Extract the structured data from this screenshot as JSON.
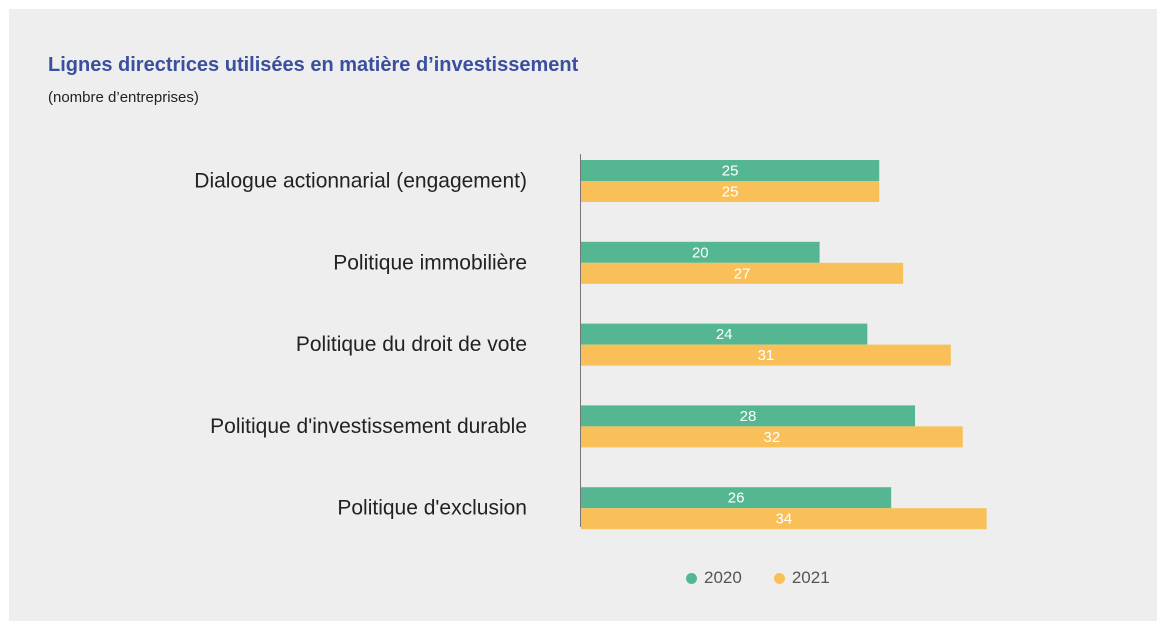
{
  "chart_data": {
    "type": "bar",
    "orientation": "horizontal",
    "title": "Lignes directrices utilisées en matière d’investissement",
    "subtitle": "(nombre d’entreprises)",
    "categories": [
      "Dialogue actionnarial (engagement)",
      "Politique immobilière",
      "Politique du droit de vote",
      "Politique d'investissement durable",
      "Politique d'exclusion"
    ],
    "series": [
      {
        "name": "2020",
        "color": "#55b792",
        "values": [
          25,
          20,
          24,
          28,
          26
        ]
      },
      {
        "name": "2021",
        "color": "#f9c05a",
        "values": [
          25,
          27,
          31,
          32,
          34
        ]
      }
    ],
    "xlim": [
      0,
      34
    ],
    "data_labels": true,
    "grid": false,
    "legend_position": "bottom"
  }
}
